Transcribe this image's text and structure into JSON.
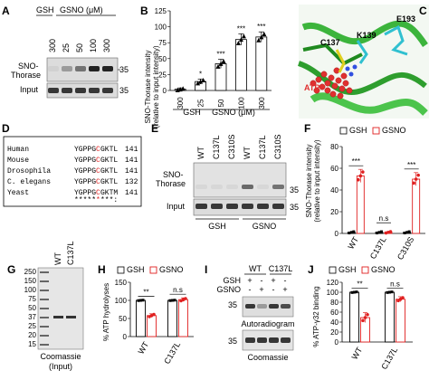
{
  "panels": {
    "A": {
      "letter": "A",
      "header_gsh": "GSH",
      "header_gsno": "GSNO (μM)",
      "lanes": [
        "300",
        "25",
        "50",
        "100",
        "300"
      ],
      "row1_label": "SNO-",
      "row1_label2": "Thorase",
      "row2_label": "Input",
      "mw1": "35",
      "mw2": "35",
      "sno_band_intensity": [
        0.08,
        0.35,
        0.55,
        0.95,
        0.95
      ],
      "input_band_intensity": [
        0.85,
        0.85,
        0.85,
        0.85,
        0.85
      ]
    },
    "B": {
      "letter": "B",
      "ylabel1": "SNO-Thorase intensity",
      "ylabel2": "(relative to input intensity)",
      "yticks": [
        "0",
        "25",
        "50",
        "75",
        "100",
        "125"
      ],
      "group_gsh": "GSH",
      "group_gsno": "GSNO (μM)",
      "chart_data": {
        "type": "bar",
        "categories": [
          "300",
          "25",
          "50",
          "100",
          "300"
        ],
        "values": [
          2,
          14,
          42,
          80,
          84
        ],
        "errors": [
          2,
          4,
          7,
          9,
          8
        ],
        "significance": [
          "",
          "*",
          "***",
          "***",
          "***"
        ],
        "ylim": [
          0,
          125
        ]
      }
    },
    "C": {
      "letter": "C",
      "labels": [
        "C137",
        "K139",
        "E193",
        "ATP"
      ]
    },
    "D": {
      "letter": "D",
      "rows": [
        {
          "species": "Human",
          "seq_a": "YGPPG",
          "seq_c": "C",
          "seq_b": "GKTL",
          "num": "141"
        },
        {
          "species": "Mouse",
          "seq_a": "YGPPG",
          "seq_c": "C",
          "seq_b": "GKTL",
          "num": "141"
        },
        {
          "species": "Drosophila",
          "seq_a": "YGPPG",
          "seq_c": "C",
          "seq_b": "GKTL",
          "num": "141"
        },
        {
          "species": "C. elegans",
          "seq_a": "YGPPG",
          "seq_c": "C",
          "seq_b": "GKTL",
          "num": "132"
        },
        {
          "species": "Yeast",
          "seq_a": "YGPPG",
          "seq_c": "C",
          "seq_b": "GKTM",
          "num": "141"
        }
      ],
      "conservation_a": "*****",
      "conservation_c": "*",
      "conservation_b": "***:"
    },
    "E": {
      "letter": "E",
      "lanes": [
        "WT",
        "C137L",
        "C310S",
        "WT",
        "C137L",
        "C310S"
      ],
      "row1_label": "SNO-",
      "row1_label2": "Thorase",
      "row2_label": "Input",
      "mw1": "35",
      "mw2": "35",
      "group_gsh": "GSH",
      "group_gsno": "GSNO"
    },
    "F": {
      "letter": "F",
      "legend_gsh": "GSH",
      "legend_gsno": "GSNO",
      "ylabel1": "SNO-Thorase intensity",
      "ylabel2": "(relative to input intensity)",
      "yticks": [
        "0",
        "20",
        "40",
        "60",
        "80"
      ],
      "sig_1": "***",
      "sig_2": "n.s",
      "sig_3": "***",
      "chart_data": {
        "type": "bar",
        "categories": [
          "WT",
          "C137L",
          "C310S"
        ],
        "series": [
          {
            "name": "GSH",
            "values": [
              1,
              1,
              1
            ]
          },
          {
            "name": "GSNO",
            "values": [
              53,
              1,
              50
            ]
          }
        ],
        "errors": [
          [
            0,
            0,
            0
          ],
          [
            6,
            0.5,
            6
          ]
        ],
        "ylim": [
          0,
          80
        ]
      }
    },
    "G": {
      "letter": "G",
      "lanes": [
        "WT",
        "C137L"
      ],
      "mw": [
        "250",
        "150",
        "100",
        "75",
        "50",
        "37",
        "25",
        "20",
        "15"
      ],
      "caption1": "Coomassie",
      "caption2": "(Input)"
    },
    "H": {
      "letter": "H",
      "legend_gsh": "GSH",
      "legend_gsno": "GSNO",
      "ylabel": "% ATP hydrolyses",
      "yticks": [
        "0",
        "50",
        "100",
        "150"
      ],
      "sig_1": "**",
      "sig_2": "n.s",
      "chart_data": {
        "type": "bar",
        "categories": [
          "WT",
          "C137L"
        ],
        "series": [
          {
            "name": "GSH",
            "values": [
              100,
              100
            ]
          },
          {
            "name": "GSNO",
            "values": [
              58,
              102
            ]
          }
        ],
        "errors": [
          [
            1,
            1
          ],
          [
            5,
            5
          ]
        ],
        "ylim": [
          0,
          150
        ]
      }
    },
    "I": {
      "letter": "I",
      "lanes": [
        "WT",
        "C137L"
      ],
      "gsh_label": "GSH",
      "gsno_label": "GSNO",
      "gsh_signs": [
        "+",
        "-",
        "+",
        "-"
      ],
      "gsno_signs": [
        "-",
        "+",
        "-",
        "+"
      ],
      "caption1": "Autoradiogram",
      "caption2": "Coomassie",
      "mw1": "35",
      "mw2": "35"
    },
    "J": {
      "letter": "J",
      "legend_gsh": "GSH",
      "legend_gsno": "GSNO",
      "ylabel": "% ATP-γ32 binding",
      "yticks": [
        "0",
        "20",
        "40",
        "60",
        "80",
        "100",
        "120"
      ],
      "sig_1": "**",
      "sig_2": "n.s",
      "chart_data": {
        "type": "bar",
        "categories": [
          "WT",
          "C137L"
        ],
        "series": [
          {
            "name": "GSH",
            "values": [
              100,
              100
            ]
          },
          {
            "name": "GSNO",
            "values": [
              49,
              86
            ]
          }
        ],
        "errors": [
          [
            1,
            1
          ],
          [
            10,
            5
          ]
        ],
        "ylim": [
          0,
          120
        ]
      }
    }
  },
  "colors": {
    "gsno": "#e02020",
    "sig_red": "#e02020",
    "black": "#000000",
    "blot_bg": "#d9d9d9",
    "protein_green": "#3cb43c",
    "atp_red": "#e03030",
    "cyan": "#30c0d0",
    "yellow": "#e0d020"
  }
}
